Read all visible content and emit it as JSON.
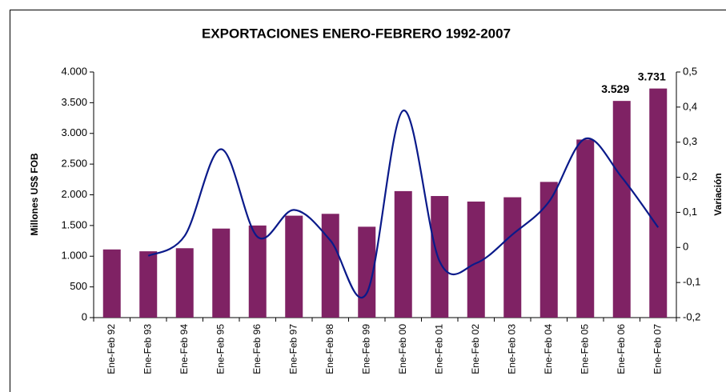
{
  "chart_data": {
    "type": "bar_line",
    "title": "EXPORTACIONES ENERO-FEBRERO 1992-2007",
    "categories": [
      "Ene-Feb 92",
      "Ene-Feb 93",
      "Ene-Feb 94",
      "Ene-Feb 95",
      "Ene-Feb 96",
      "Ene-Feb 97",
      "Ene-Feb 98",
      "Ene-Feb 99",
      "Ene-Feb 00",
      "Ene-Feb 01",
      "Ene-Feb 02",
      "Ene-Feb 03",
      "Ene-Feb 04",
      "Ene-Feb 05",
      "Ene-Feb 06",
      "Ene-Feb 07"
    ],
    "y_label": "Millones US$ FOB",
    "y2_label": "Variación",
    "ylim": [
      0,
      4000
    ],
    "yticks": [
      0,
      500,
      {
        "value": 1000,
        "label": "1.000"
      },
      {
        "value": 1500,
        "label": "1.500"
      },
      {
        "value": 2000,
        "label": "2.000"
      },
      {
        "value": 2500,
        "label": "2.500"
      },
      {
        "value": 3000,
        "label": "3.000"
      },
      {
        "value": 3500,
        "label": "3.500"
      },
      {
        "value": 4000,
        "label": "4.000"
      }
    ],
    "y2lim": [
      -0.2,
      0.5
    ],
    "y2ticks": [
      {
        "value": -0.2,
        "label": "-0,2"
      },
      {
        "value": -0.1,
        "label": "-0,1"
      },
      0,
      {
        "value": 0.1,
        "label": "0,1"
      },
      {
        "value": 0.2,
        "label": "0,2"
      },
      {
        "value": 0.3,
        "label": "0,3"
      },
      {
        "value": 0.4,
        "label": "0,4"
      },
      {
        "value": 0.5,
        "label": "0,5"
      }
    ],
    "series": [
      {
        "type": "bar",
        "color": "#7f2264",
        "values": [
          1110,
          1080,
          1130,
          1450,
          1500,
          1660,
          1690,
          1480,
          2060,
          1980,
          1890,
          1960,
          2210,
          2900,
          3529,
          3731
        ],
        "value_labels": [
          null,
          null,
          null,
          null,
          null,
          null,
          null,
          null,
          null,
          null,
          null,
          null,
          null,
          null,
          "3.529",
          "3.731"
        ]
      },
      {
        "type": "line",
        "axis": "y2",
        "color": "#0a1a8a",
        "values": [
          null,
          -0.024,
          0.033,
          0.28,
          0.03,
          0.107,
          0.02,
          -0.13,
          0.39,
          -0.04,
          -0.045,
          0.037,
          0.13,
          0.31,
          0.2,
          0.057
        ]
      }
    ]
  }
}
